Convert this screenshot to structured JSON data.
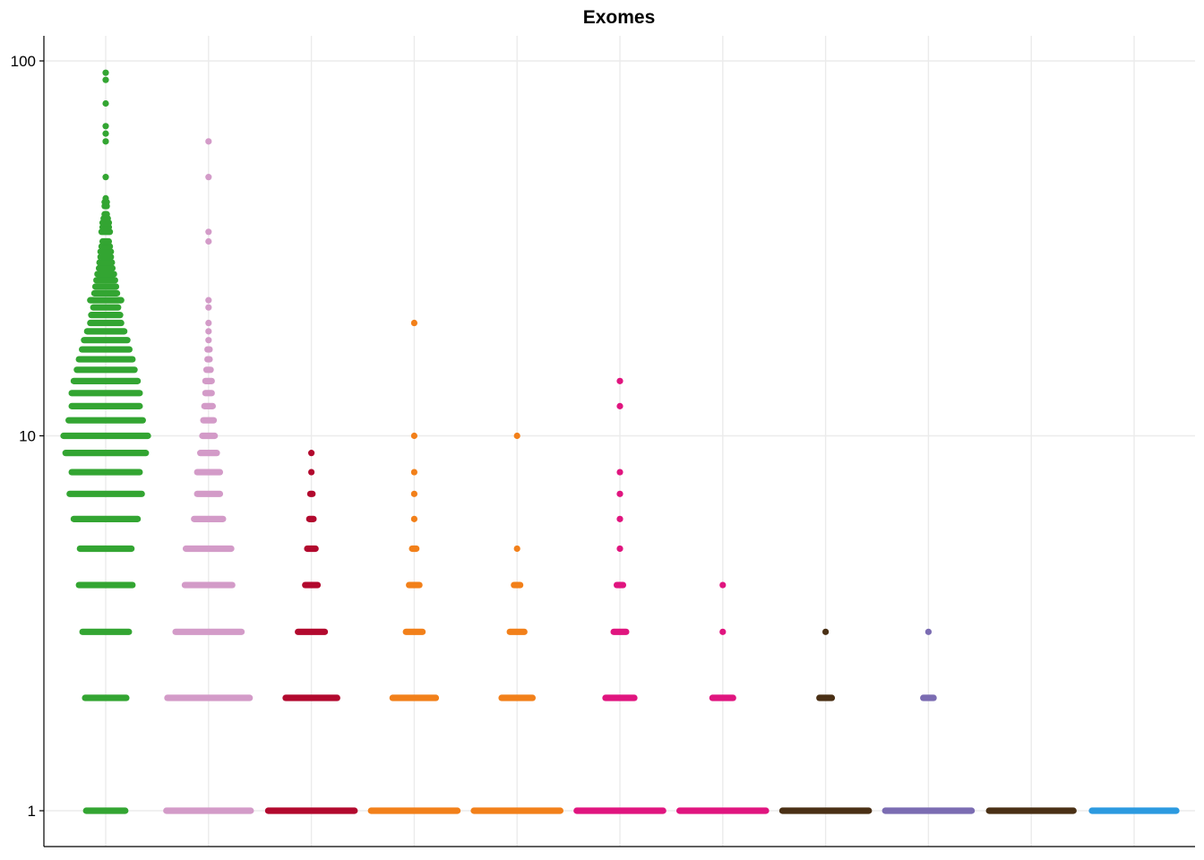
{
  "chart_data": {
    "type": "scatter",
    "title": "Exomes",
    "xlabel": "",
    "ylabel": "",
    "y_scale": "log10",
    "ylim": [
      0.9,
      120
    ],
    "y_ticks": [
      1,
      10,
      100
    ],
    "y_tick_labels": [
      "1",
      "10",
      "100"
    ],
    "grid": true,
    "legend": "none",
    "categories": [
      "",
      "",
      "",
      "",
      "",
      "",
      "",
      "",
      "",
      "",
      ""
    ],
    "series": [
      {
        "color": "#33a532",
        "points": [
          {
            "y": 1,
            "width": 0.38
          },
          {
            "y": 2,
            "width": 0.4
          },
          {
            "y": 3,
            "width": 0.45
          },
          {
            "y": 4,
            "width": 0.52
          },
          {
            "y": 5,
            "width": 0.5
          },
          {
            "y": 6,
            "width": 0.62
          },
          {
            "y": 7,
            "width": 0.7
          },
          {
            "y": 8,
            "width": 0.66
          },
          {
            "y": 9,
            "width": 0.78
          },
          {
            "y": 10,
            "width": 0.82
          },
          {
            "y": 11,
            "width": 0.72
          },
          {
            "y": 12,
            "width": 0.66
          },
          {
            "y": 13,
            "width": 0.66
          },
          {
            "y": 14,
            "width": 0.62
          },
          {
            "y": 15,
            "width": 0.56
          },
          {
            "y": 16,
            "width": 0.52
          },
          {
            "y": 17,
            "width": 0.46
          },
          {
            "y": 18,
            "width": 0.42
          },
          {
            "y": 19,
            "width": 0.36
          },
          {
            "y": 20,
            "width": 0.3
          },
          {
            "y": 21,
            "width": 0.28
          },
          {
            "y": 22,
            "width": 0.24
          },
          {
            "y": 23,
            "width": 0.3
          },
          {
            "y": 24,
            "width": 0.22
          },
          {
            "y": 25,
            "width": 0.2
          },
          {
            "y": 26,
            "width": 0.18
          },
          {
            "y": 27,
            "width": 0.16
          },
          {
            "y": 28,
            "width": 0.13
          },
          {
            "y": 29,
            "width": 0.12
          },
          {
            "y": 30,
            "width": 0.1
          },
          {
            "y": 31,
            "width": 0.1
          },
          {
            "y": 32,
            "width": 0.08
          },
          {
            "y": 33,
            "width": 0.06
          },
          {
            "y": 35,
            "width": 0.08
          },
          {
            "y": 36,
            "width": 0.06
          },
          {
            "y": 37,
            "width": 0.06
          },
          {
            "y": 38,
            "width": 0.04
          },
          {
            "y": 39,
            "width": 0.02
          },
          {
            "y": 41,
            "width": 0.02
          },
          {
            "y": 42,
            "width": 0.02
          },
          {
            "y": 43,
            "width": 0.0
          },
          {
            "y": 49,
            "width": 0.0
          },
          {
            "y": 61,
            "width": 0.0
          },
          {
            "y": 64,
            "width": 0.0
          },
          {
            "y": 67,
            "width": 0.0
          },
          {
            "y": 77,
            "width": 0.0
          },
          {
            "y": 89,
            "width": 0.0
          },
          {
            "y": 93,
            "width": 0.0
          }
        ]
      },
      {
        "color": "#d39bc8",
        "points": [
          {
            "y": 1,
            "width": 0.82
          },
          {
            "y": 2,
            "width": 0.8
          },
          {
            "y": 3,
            "width": 0.64
          },
          {
            "y": 4,
            "width": 0.46
          },
          {
            "y": 5,
            "width": 0.44
          },
          {
            "y": 6,
            "width": 0.28
          },
          {
            "y": 7,
            "width": 0.22
          },
          {
            "y": 8,
            "width": 0.22
          },
          {
            "y": 9,
            "width": 0.16
          },
          {
            "y": 10,
            "width": 0.12
          },
          {
            "y": 11,
            "width": 0.1
          },
          {
            "y": 12,
            "width": 0.08
          },
          {
            "y": 13,
            "width": 0.06
          },
          {
            "y": 14,
            "width": 0.06
          },
          {
            "y": 15,
            "width": 0.04
          },
          {
            "y": 16,
            "width": 0.02
          },
          {
            "y": 17,
            "width": 0.02
          },
          {
            "y": 18,
            "width": 0.0
          },
          {
            "y": 19,
            "width": 0.0
          },
          {
            "y": 20,
            "width": 0.0
          },
          {
            "y": 22,
            "width": 0.0
          },
          {
            "y": 23,
            "width": 0.0
          },
          {
            "y": 33,
            "width": 0.0
          },
          {
            "y": 35,
            "width": 0.0
          },
          {
            "y": 49,
            "width": 0.0
          },
          {
            "y": 61,
            "width": 0.0
          }
        ]
      },
      {
        "color": "#b2092e",
        "points": [
          {
            "y": 1,
            "width": 0.84
          },
          {
            "y": 2,
            "width": 0.5
          },
          {
            "y": 3,
            "width": 0.26
          },
          {
            "y": 4,
            "width": 0.12
          },
          {
            "y": 5,
            "width": 0.08
          },
          {
            "y": 6,
            "width": 0.04
          },
          {
            "y": 7,
            "width": 0.02
          },
          {
            "y": 8,
            "width": 0.0
          },
          {
            "y": 9,
            "width": 0.0
          }
        ]
      },
      {
        "color": "#f2801a",
        "points": [
          {
            "y": 1,
            "width": 0.84
          },
          {
            "y": 2,
            "width": 0.42
          },
          {
            "y": 3,
            "width": 0.16
          },
          {
            "y": 4,
            "width": 0.1
          },
          {
            "y": 5,
            "width": 0.04
          },
          {
            "y": 6,
            "width": 0.0
          },
          {
            "y": 7,
            "width": 0.0
          },
          {
            "y": 8,
            "width": 0.0
          },
          {
            "y": 10,
            "width": 0.0
          },
          {
            "y": 20,
            "width": 0.0
          }
        ]
      },
      {
        "color": "#f2801a",
        "points": [
          {
            "y": 1,
            "width": 0.84
          },
          {
            "y": 2,
            "width": 0.3
          },
          {
            "y": 3,
            "width": 0.14
          },
          {
            "y": 4,
            "width": 0.06
          },
          {
            "y": 5,
            "width": 0.0
          },
          {
            "y": 10,
            "width": 0.0
          }
        ]
      },
      {
        "color": "#e0157f",
        "points": [
          {
            "y": 1,
            "width": 0.84
          },
          {
            "y": 2,
            "width": 0.28
          },
          {
            "y": 3,
            "width": 0.12
          },
          {
            "y": 4,
            "width": 0.06
          },
          {
            "y": 5,
            "width": 0.0
          },
          {
            "y": 6,
            "width": 0.0
          },
          {
            "y": 7,
            "width": 0.0
          },
          {
            "y": 8,
            "width": 0.0
          },
          {
            "y": 12,
            "width": 0.0
          },
          {
            "y": 14,
            "width": 0.0
          }
        ]
      },
      {
        "color": "#e0157f",
        "points": [
          {
            "y": 1,
            "width": 0.84
          },
          {
            "y": 2,
            "width": 0.2
          },
          {
            "y": 3,
            "width": 0.0
          },
          {
            "y": 4,
            "width": 0.0
          }
        ]
      },
      {
        "color": "#4a3015",
        "points": [
          {
            "y": 1,
            "width": 0.84
          },
          {
            "y": 2,
            "width": 0.12
          },
          {
            "y": 3,
            "width": 0.0
          }
        ]
      },
      {
        "color": "#7b6cb2",
        "points": [
          {
            "y": 1,
            "width": 0.84
          },
          {
            "y": 2,
            "width": 0.1
          },
          {
            "y": 3,
            "width": 0.0
          }
        ]
      },
      {
        "color": "#4a3015",
        "points": [
          {
            "y": 1,
            "width": 0.82
          }
        ]
      },
      {
        "color": "#2c9ae0",
        "points": [
          {
            "y": 1,
            "width": 0.82
          }
        ]
      }
    ]
  }
}
